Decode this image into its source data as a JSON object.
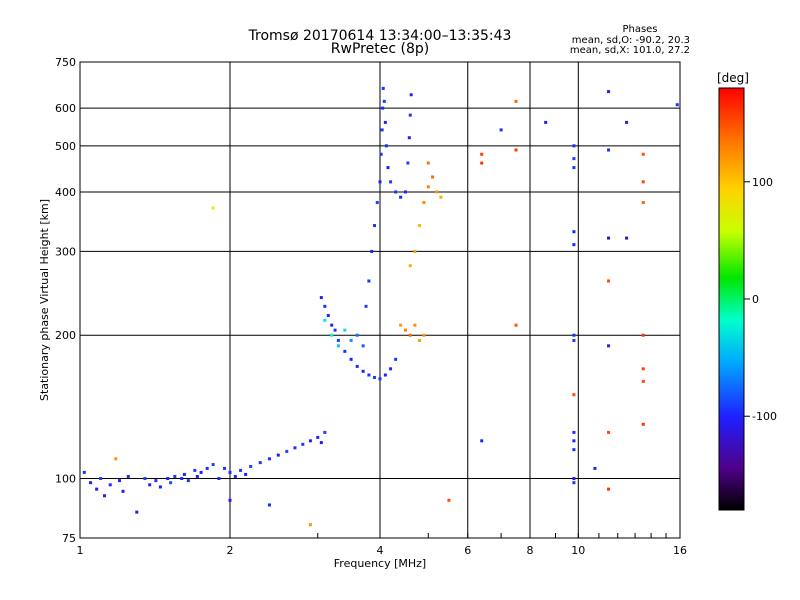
{
  "chart_data": {
    "type": "scatter",
    "title": "Tromsø 20170614 13:34:00–13:35:43",
    "subtitle": "RwPretec (8p)",
    "xlabel": "Frequency [MHz]",
    "ylabel": "Stationary phase Virtual Height [km]",
    "x_scale": "log",
    "y_scale": "log",
    "xlim": [
      1,
      16
    ],
    "ylim": [
      75,
      750
    ],
    "x_ticks": [
      1,
      2,
      4,
      6,
      8,
      10,
      16
    ],
    "y_ticks": [
      75,
      100,
      200,
      300,
      400,
      500,
      600,
      750
    ],
    "grid": true,
    "stats": {
      "heading": "Phases",
      "line1": "mean, sd,O: -90.2, 20.3",
      "line2": "mean, sd,X: 101.0, 27.2"
    },
    "colorbar": {
      "label": "[deg]",
      "range": [
        -180,
        180
      ],
      "ticks": [
        100,
        0,
        -100
      ]
    },
    "points_note_phase_deg": true,
    "points": [
      [
        1.02,
        103,
        -95
      ],
      [
        1.05,
        98,
        -100
      ],
      [
        1.08,
        95,
        -105
      ],
      [
        1.1,
        100,
        -90
      ],
      [
        1.12,
        92,
        -110
      ],
      [
        1.15,
        97,
        -95
      ],
      [
        1.18,
        110,
        120
      ],
      [
        1.2,
        99,
        -100
      ],
      [
        1.22,
        94,
        -105
      ],
      [
        1.25,
        101,
        -98
      ],
      [
        1.3,
        85,
        -110
      ],
      [
        1.35,
        100,
        -90
      ],
      [
        1.38,
        97,
        -100
      ],
      [
        1.42,
        99,
        -95
      ],
      [
        1.45,
        96,
        -105
      ],
      [
        1.5,
        100,
        -100
      ],
      [
        1.52,
        98,
        -85
      ],
      [
        1.55,
        101,
        -92
      ],
      [
        1.6,
        100,
        -98
      ],
      [
        1.62,
        102,
        -100
      ],
      [
        1.65,
        99,
        -95
      ],
      [
        1.7,
        104,
        -90
      ],
      [
        1.72,
        101,
        -105
      ],
      [
        1.75,
        103,
        -100
      ],
      [
        1.8,
        105,
        -95
      ],
      [
        1.85,
        107,
        -88
      ],
      [
        1.9,
        100,
        -100
      ],
      [
        1.95,
        105,
        -92
      ],
      [
        2.0,
        103,
        -95
      ],
      [
        2.05,
        101,
        -98
      ],
      [
        2.1,
        104,
        -90
      ],
      [
        2.15,
        102,
        -100
      ],
      [
        2.2,
        106,
        -85
      ],
      [
        2.3,
        108,
        -92
      ],
      [
        2.4,
        110,
        -95
      ],
      [
        2.5,
        112,
        -100
      ],
      [
        2.6,
        114,
        -88
      ],
      [
        2.7,
        116,
        -95
      ],
      [
        2.8,
        118,
        -92
      ],
      [
        2.9,
        120,
        -100
      ],
      [
        3.0,
        122,
        -98
      ],
      [
        3.05,
        119,
        -105
      ],
      [
        3.1,
        125,
        -90
      ],
      [
        1.85,
        370,
        60
      ],
      [
        2.0,
        90,
        -110
      ],
      [
        2.4,
        88,
        -100
      ],
      [
        2.9,
        80,
        120
      ],
      [
        3.05,
        240,
        -100
      ],
      [
        3.1,
        230,
        -95
      ],
      [
        3.15,
        220,
        -98
      ],
      [
        3.2,
        210,
        -100
      ],
      [
        3.25,
        205,
        -92
      ],
      [
        3.3,
        195,
        -90
      ],
      [
        3.4,
        185,
        -95
      ],
      [
        3.5,
        178,
        -100
      ],
      [
        3.6,
        172,
        -98
      ],
      [
        3.7,
        168,
        -100
      ],
      [
        3.8,
        165,
        -95
      ],
      [
        3.9,
        163,
        -90
      ],
      [
        4.0,
        162,
        -95
      ],
      [
        4.1,
        165,
        -100
      ],
      [
        4.2,
        170,
        -98
      ],
      [
        4.3,
        178,
        -92
      ],
      [
        3.1,
        215,
        -30
      ],
      [
        3.2,
        200,
        -20
      ],
      [
        3.3,
        190,
        -40
      ],
      [
        3.4,
        205,
        -30
      ],
      [
        3.5,
        195,
        -60
      ],
      [
        3.6,
        200,
        -70
      ],
      [
        3.7,
        190,
        -80
      ],
      [
        3.75,
        230,
        -90
      ],
      [
        3.8,
        260,
        -95
      ],
      [
        3.85,
        300,
        -100
      ],
      [
        3.9,
        340,
        -95
      ],
      [
        3.95,
        380,
        -90
      ],
      [
        4.0,
        420,
        -100
      ],
      [
        4.02,
        480,
        -98
      ],
      [
        4.04,
        540,
        -92
      ],
      [
        4.05,
        600,
        -100
      ],
      [
        4.06,
        660,
        -95
      ],
      [
        4.08,
        620,
        -90
      ],
      [
        4.1,
        560,
        -100
      ],
      [
        4.12,
        500,
        -95
      ],
      [
        4.15,
        450,
        -100
      ],
      [
        4.2,
        420,
        -92
      ],
      [
        4.3,
        400,
        -95
      ],
      [
        4.4,
        390,
        -100
      ],
      [
        4.5,
        400,
        -98
      ],
      [
        4.55,
        460,
        -90
      ],
      [
        4.58,
        520,
        -100
      ],
      [
        4.6,
        580,
        -95
      ],
      [
        4.62,
        640,
        -100
      ],
      [
        4.4,
        210,
        120
      ],
      [
        4.5,
        205,
        130
      ],
      [
        4.6,
        200,
        140
      ],
      [
        4.7,
        210,
        125
      ],
      [
        4.8,
        195,
        115
      ],
      [
        4.9,
        200,
        120
      ],
      [
        4.6,
        280,
        110
      ],
      [
        4.7,
        300,
        115
      ],
      [
        4.8,
        340,
        105
      ],
      [
        4.9,
        380,
        125
      ],
      [
        5.0,
        410,
        130
      ],
      [
        5.1,
        430,
        140
      ],
      [
        5.2,
        400,
        120
      ],
      [
        5.3,
        390,
        110
      ],
      [
        5.0,
        460,
        135
      ],
      [
        5.5,
        90,
        150
      ],
      [
        6.4,
        460,
        160
      ],
      [
        6.4,
        480,
        155
      ],
      [
        6.4,
        120,
        -100
      ],
      [
        7.0,
        540,
        -95
      ],
      [
        7.5,
        620,
        140
      ],
      [
        7.5,
        490,
        160
      ],
      [
        7.5,
        210,
        150
      ],
      [
        8.6,
        560,
        -100
      ],
      [
        9.8,
        500,
        -98
      ],
      [
        9.8,
        470,
        -92
      ],
      [
        9.8,
        450,
        -95
      ],
      [
        9.8,
        330,
        -100
      ],
      [
        9.8,
        310,
        -98
      ],
      [
        9.8,
        200,
        -95
      ],
      [
        9.8,
        195,
        -90
      ],
      [
        9.8,
        150,
        150
      ],
      [
        9.8,
        125,
        -98
      ],
      [
        9.8,
        120,
        -100
      ],
      [
        9.8,
        115,
        -95
      ],
      [
        9.8,
        100,
        -110
      ],
      [
        9.8,
        98,
        -92
      ],
      [
        10.8,
        105,
        -100
      ],
      [
        11.5,
        650,
        -100
      ],
      [
        11.5,
        490,
        -95
      ],
      [
        11.5,
        320,
        -120
      ],
      [
        11.5,
        260,
        150
      ],
      [
        11.5,
        190,
        -100
      ],
      [
        11.5,
        125,
        150
      ],
      [
        11.5,
        95,
        160
      ],
      [
        12.5,
        560,
        -100
      ],
      [
        12.5,
        320,
        -120
      ],
      [
        13.5,
        480,
        150
      ],
      [
        13.5,
        420,
        155
      ],
      [
        13.5,
        380,
        140
      ],
      [
        13.5,
        200,
        160
      ],
      [
        13.5,
        170,
        155
      ],
      [
        13.5,
        160,
        150
      ],
      [
        13.5,
        130,
        160
      ],
      [
        15.8,
        610,
        -95
      ]
    ]
  }
}
